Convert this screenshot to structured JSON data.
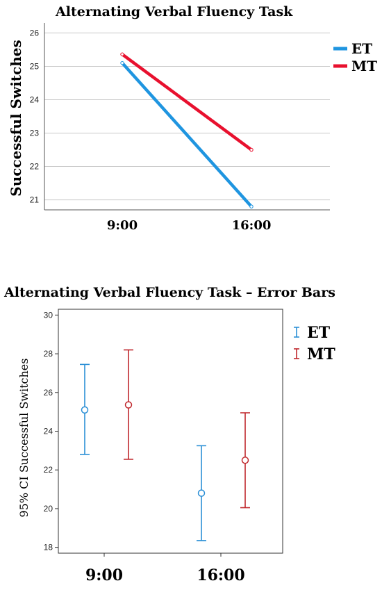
{
  "colors": {
    "ET": "#1f95e0",
    "MT": "#e8102e",
    "ET_err": "#2b8fd6",
    "MT_err": "#c0282d"
  },
  "chart_data": [
    {
      "type": "line",
      "title": "Alternating Verbal Fluency Task",
      "xlabel": "",
      "ylabel": "Successful Switches",
      "categories": [
        "9:00",
        "16:00"
      ],
      "ylim": [
        20.7,
        26.3
      ],
      "yticks": [
        "21",
        "22",
        "23",
        "24",
        "25",
        "26"
      ],
      "grid": true,
      "legend_position": "right",
      "series": [
        {
          "name": "ET",
          "values": [
            25.1,
            20.8
          ]
        },
        {
          "name": "MT",
          "values": [
            25.36,
            22.5
          ]
        }
      ]
    },
    {
      "type": "scatter",
      "title": "Alternating Verbal Fluency Task – Error Bars",
      "xlabel": "",
      "ylabel": "95% CI Successful Switches",
      "categories": [
        "9:00",
        "16:00"
      ],
      "ylim": [
        17.7,
        30.3
      ],
      "yticks": [
        "18",
        "20",
        "22",
        "24",
        "26",
        "28",
        "30"
      ],
      "grid": false,
      "legend_position": "right",
      "series": [
        {
          "name": "ET",
          "mean": [
            25.1,
            20.8
          ],
          "lower": [
            22.8,
            18.35
          ],
          "upper": [
            27.45,
            23.25
          ]
        },
        {
          "name": "MT",
          "mean": [
            25.36,
            22.5
          ],
          "lower": [
            22.55,
            20.05
          ],
          "upper": [
            28.2,
            24.95
          ]
        }
      ]
    }
  ]
}
